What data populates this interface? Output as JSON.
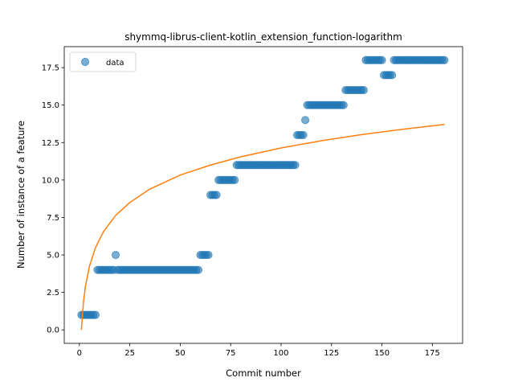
{
  "chart_data": {
    "type": "scatter",
    "title": "shymmq-librus-client-kotlin_extension_function-logarithm",
    "xlabel": "Commit number",
    "ylabel": "Number of instance of a feature",
    "xlim": [
      -7.5,
      190
    ],
    "ylim": [
      -0.9,
      18.9
    ],
    "xticks": [
      0,
      25,
      50,
      75,
      100,
      125,
      150,
      175
    ],
    "xtick_labels": [
      "0",
      "25",
      "50",
      "75",
      "100",
      "125",
      "150",
      "175"
    ],
    "yticks": [
      0.0,
      2.5,
      5.0,
      7.5,
      10.0,
      12.5,
      15.0,
      17.5
    ],
    "ytick_labels": [
      "0.0",
      "2.5",
      "5.0",
      "7.5",
      "10.0",
      "12.5",
      "15.0",
      "17.5"
    ],
    "grid": false,
    "legend": {
      "placement": "top-left",
      "entries": [
        "data"
      ]
    },
    "colors": {
      "data": "#1f77b4",
      "fit": "#ff7f0e"
    },
    "series": [
      {
        "name": "data",
        "kind": "scatter",
        "runs": [
          {
            "x_start": 1,
            "x_end": 8,
            "y": 1
          },
          {
            "x_start": 9,
            "x_end": 17,
            "y": 4
          },
          {
            "x_start": 18,
            "x_end": 18,
            "y": 5
          },
          {
            "x_start": 19,
            "x_end": 59,
            "y": 4
          },
          {
            "x_start": 60,
            "x_end": 64,
            "y": 5
          },
          {
            "x_start": 65,
            "x_end": 68,
            "y": 9
          },
          {
            "x_start": 69,
            "x_end": 77,
            "y": 10
          },
          {
            "x_start": 78,
            "x_end": 107,
            "y": 11
          },
          {
            "x_start": 108,
            "x_end": 111,
            "y": 13
          },
          {
            "x_start": 112,
            "x_end": 112,
            "y": 14
          },
          {
            "x_start": 113,
            "x_end": 131,
            "y": 15
          },
          {
            "x_start": 132,
            "x_end": 141,
            "y": 16
          },
          {
            "x_start": 142,
            "x_end": 150,
            "y": 18
          },
          {
            "x_start": 151,
            "x_end": 155,
            "y": 17
          },
          {
            "x_start": 156,
            "x_end": 181,
            "y": 18
          }
        ]
      },
      {
        "kind": "line",
        "model": "logarithm",
        "points": [
          [
            1,
            0.0
          ],
          [
            2,
            1.83
          ],
          [
            3,
            2.9
          ],
          [
            5,
            4.25
          ],
          [
            8,
            5.49
          ],
          [
            12,
            6.57
          ],
          [
            18,
            7.64
          ],
          [
            25,
            8.5
          ],
          [
            35,
            9.4
          ],
          [
            50,
            10.33
          ],
          [
            65,
            11.0
          ],
          [
            80,
            11.55
          ],
          [
            100,
            12.14
          ],
          [
            120,
            12.62
          ],
          [
            140,
            13.03
          ],
          [
            160,
            13.38
          ],
          [
            181,
            13.71
          ]
        ]
      }
    ]
  }
}
